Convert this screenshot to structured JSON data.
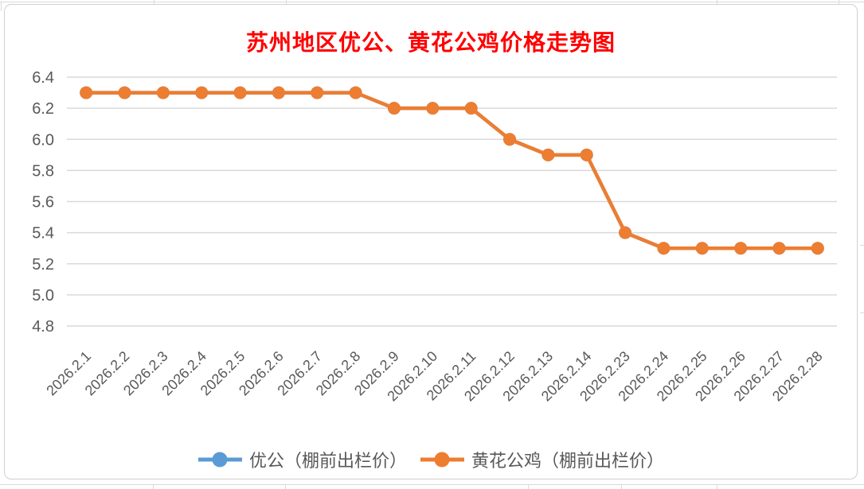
{
  "chart": {
    "title": "苏州地区优公、黄花公鸡价格走势图",
    "title_color": "#FF0000"
  },
  "chart_data": {
    "type": "line",
    "title": "苏州地区优公、黄花公鸡价格走势图",
    "categories": [
      "2026.2.1",
      "2026.2.2",
      "2026.2.3",
      "2026.2.4",
      "2026.2.5",
      "2026.2.6",
      "2026.2.7",
      "2026.2.8",
      "2026.2.9",
      "2026.2.10",
      "2026.2.11",
      "2026.2.12",
      "2026.2.13",
      "2026.2.14",
      "2026.2.23",
      "2026.2.24",
      "2026.2.25",
      "2026.2.26",
      "2026.2.27",
      "2026.2.28"
    ],
    "series": [
      {
        "name": "优公（棚前出栏价）",
        "color": "#5B9BD5",
        "marker": "circle",
        "values": [
          6.3,
          6.3,
          6.3,
          6.3,
          6.3,
          6.3,
          6.3,
          6.3,
          6.2,
          6.2,
          6.2,
          6.0,
          5.9,
          5.9,
          5.4,
          5.3,
          5.3,
          5.3,
          5.3,
          5.3
        ],
        "note": "line completely overlapped by the orange series in the plot"
      },
      {
        "name": "黄花公鸡（棚前出栏价）",
        "color": "#ED7D31",
        "marker": "circle",
        "values": [
          6.3,
          6.3,
          6.3,
          6.3,
          6.3,
          6.3,
          6.3,
          6.3,
          6.2,
          6.2,
          6.2,
          6.0,
          5.9,
          5.9,
          5.4,
          5.3,
          5.3,
          5.3,
          5.3,
          5.3
        ]
      }
    ],
    "ylim": [
      4.8,
      6.4
    ],
    "y_tick_step": 0.2,
    "y_tick_labels": [
      "6.4",
      "6.2",
      "6.0",
      "5.8",
      "5.6",
      "5.4",
      "5.2",
      "5.0",
      "4.8"
    ],
    "xlabel": "",
    "ylabel": "",
    "grid": "horizontal",
    "legend_position": "bottom",
    "colors": {
      "axis_text": "#595959",
      "gridline": "#D9D9D9",
      "chart_border": "#D0D0D0"
    }
  }
}
